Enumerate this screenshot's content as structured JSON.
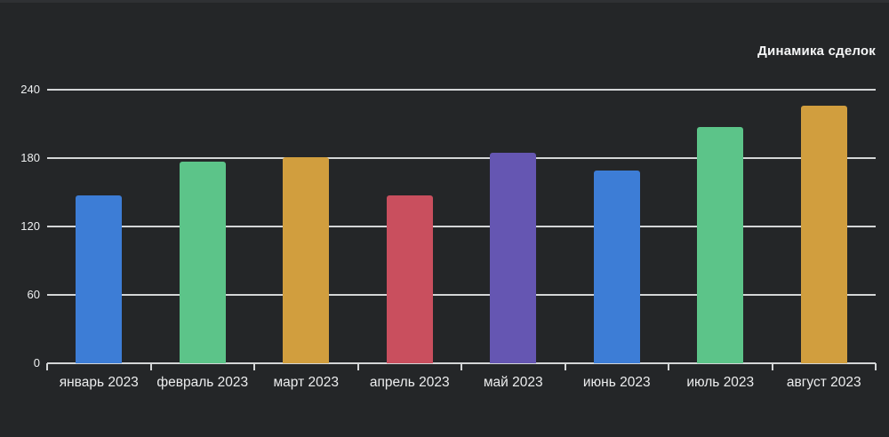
{
  "chart_data": {
    "type": "bar",
    "title": "Динамика сделок",
    "categories": [
      "январь 2023",
      "февраль 2023",
      "март 2023",
      "апрель 2023",
      "май 2023",
      "июнь 2023",
      "июль 2023",
      "август 2023"
    ],
    "values": [
      147,
      177,
      181,
      147,
      185,
      169,
      207,
      226
    ],
    "bar_colors": [
      "#3d7dd6",
      "#5cc489",
      "#d19e3e",
      "#c94f5e",
      "#6556b2",
      "#3d7dd6",
      "#5cc489",
      "#d19e3e"
    ],
    "y_ticks": [
      0,
      60,
      120,
      180,
      240
    ],
    "ylim": [
      0,
      240
    ],
    "grid": true,
    "legend": "none",
    "xlabel": "",
    "ylabel": "",
    "colors": {
      "background": "#242628",
      "gridline": "#d4d6d7",
      "axis_text": "#eef0f1",
      "title_text": "#f5f6f7"
    }
  }
}
